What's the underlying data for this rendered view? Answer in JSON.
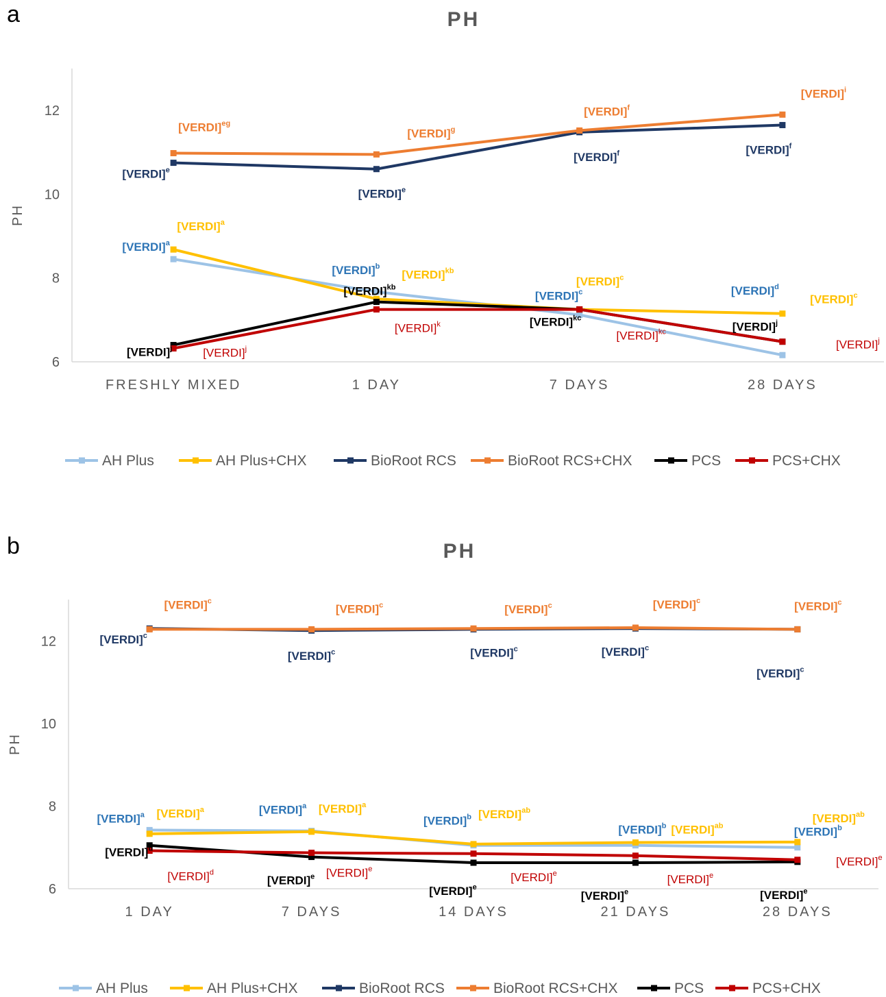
{
  "panel_a": {
    "letter": "a"
  },
  "panel_b": {
    "letter": "b"
  },
  "colors": {
    "AH Plus": "#9DC3E6",
    "AH Plus+CHX": "#FFC000",
    "BioRoot RCS": "#1F3864",
    "BioRoot RCS+CHX": "#ED7D31",
    "PCS": "#000000",
    "PCS+CHX": "#C00000"
  },
  "label_colors": {
    "AH Plus": "#2E75B6",
    "AH Plus+CHX": "#FFC000",
    "BioRoot RCS": "#1F3864",
    "BioRoot RCS+CHX": "#ED7D31",
    "PCS": "#000000",
    "PCS+CHX": "#C00000"
  },
  "chart_data": [
    {
      "type": "line",
      "title": "PH",
      "ylabel": "PH",
      "xlabel": "",
      "ylim": [
        6,
        13
      ],
      "yticks": [
        6,
        8,
        10,
        12
      ],
      "grid": false,
      "legend": "bottom",
      "categories": [
        "FRESHLY MIXED",
        "1 DAY",
        "7 DAYS",
        "28 DAYS"
      ],
      "series": [
        {
          "name": "AH Plus",
          "values": [
            8.45,
            7.67,
            7.12,
            6.16
          ],
          "labels": [
            {
              "text": "[VERDI]",
              "sup": "a"
            },
            {
              "text": "[VERDI]",
              "sup": "b"
            },
            {
              "text": "[VERDI]",
              "sup": "c"
            },
            {
              "text": "[VERDI]",
              "sup": "d"
            }
          ]
        },
        {
          "name": "AH Plus+CHX",
          "values": [
            8.68,
            7.5,
            7.25,
            7.15
          ],
          "labels": [
            {
              "text": "[VERDI]",
              "sup": "a"
            },
            {
              "text": "[VERDI]",
              "sup": "kb"
            },
            {
              "text": "[VERDI]",
              "sup": "c"
            },
            {
              "text": "[VERDI]",
              "sup": "c"
            }
          ]
        },
        {
          "name": "BioRoot RCS",
          "values": [
            10.75,
            10.6,
            11.48,
            11.65
          ],
          "labels": [
            {
              "text": "[VERDI]",
              "sup": "e"
            },
            {
              "text": "[VERDI]",
              "sup": "e"
            },
            {
              "text": "[VERDI]",
              "sup": "f"
            },
            {
              "text": "[VERDI]",
              "sup": "f"
            }
          ]
        },
        {
          "name": "BioRoot RCS+CHX",
          "values": [
            10.98,
            10.95,
            11.52,
            11.9
          ],
          "labels": [
            {
              "text": "[VERDI]",
              "sup": "eg"
            },
            {
              "text": "[VERDI]",
              "sup": "g"
            },
            {
              "text": "[VERDI]",
              "sup": "f"
            },
            {
              "text": "[VERDI]",
              "sup": "i"
            }
          ]
        },
        {
          "name": "PCS",
          "values": [
            6.4,
            7.43,
            7.25,
            6.48
          ],
          "labels": [
            {
              "text": "[VERDI]",
              "sup": "j"
            },
            {
              "text": "[VERDI]",
              "sup": "kb"
            },
            {
              "text": "[VERDI]",
              "sup": "kc"
            },
            {
              "text": "[VERDI]",
              "sup": "j"
            }
          ]
        },
        {
          "name": "PCS+CHX",
          "values": [
            6.32,
            7.25,
            7.25,
            6.48
          ],
          "labels": [
            {
              "text": "[VERDI]",
              "sup": "j"
            },
            {
              "text": "[VERDI]",
              "sup": "k"
            },
            {
              "text": "[VERDI]",
              "sup": "kc"
            },
            {
              "text": "[VERDI]",
              "sup": "j"
            }
          ]
        }
      ]
    },
    {
      "type": "line",
      "title": "PH",
      "ylabel": "PH",
      "xlabel": "",
      "ylim": [
        6,
        13
      ],
      "yticks": [
        6,
        8,
        10,
        12
      ],
      "grid": false,
      "legend": "bottom",
      "categories": [
        "1 DAY",
        "7 DAYS",
        "14 DAYS",
        "21 DAYS",
        "28 DAYS"
      ],
      "series": [
        {
          "name": "AH Plus",
          "values": [
            7.42,
            7.4,
            7.05,
            7.05,
            7.0
          ],
          "labels": [
            {
              "text": "[VERDI]",
              "sup": "a"
            },
            {
              "text": "[VERDI]",
              "sup": "a"
            },
            {
              "text": "[VERDI]",
              "sup": "b"
            },
            {
              "text": "[VERDI]",
              "sup": "b"
            },
            {
              "text": "[VERDI]",
              "sup": "b"
            }
          ]
        },
        {
          "name": "AH Plus+CHX",
          "values": [
            7.33,
            7.38,
            7.08,
            7.12,
            7.13
          ],
          "labels": [
            {
              "text": "[VERDI]",
              "sup": "a"
            },
            {
              "text": "[VERDI]",
              "sup": "a"
            },
            {
              "text": "[VERDI]",
              "sup": "ab"
            },
            {
              "text": "[VERDI]",
              "sup": "ab"
            },
            {
              "text": "[VERDI]",
              "sup": "ab"
            }
          ]
        },
        {
          "name": "BioRoot RCS",
          "values": [
            12.3,
            12.25,
            12.28,
            12.3,
            12.28
          ],
          "labels": [
            {
              "text": "[VERDI]",
              "sup": "c"
            },
            {
              "text": "[VERDI]",
              "sup": "c"
            },
            {
              "text": "[VERDI]",
              "sup": "c"
            },
            {
              "text": "[VERDI]",
              "sup": "c"
            },
            {
              "text": "[VERDI]",
              "sup": "c"
            }
          ]
        },
        {
          "name": "BioRoot RCS+CHX",
          "values": [
            12.28,
            12.28,
            12.3,
            12.32,
            12.28
          ],
          "labels": [
            {
              "text": "[VERDI]",
              "sup": "c"
            },
            {
              "text": "[VERDI]",
              "sup": "c"
            },
            {
              "text": "[VERDI]",
              "sup": "c"
            },
            {
              "text": "[VERDI]",
              "sup": "c"
            },
            {
              "text": "[VERDI]",
              "sup": "c"
            }
          ]
        },
        {
          "name": "PCS",
          "values": [
            7.05,
            6.77,
            6.63,
            6.63,
            6.65
          ],
          "labels": [
            {
              "text": "[VERDI]",
              "sup": "d"
            },
            {
              "text": "[VERDI]",
              "sup": "e"
            },
            {
              "text": "[VERDI]",
              "sup": "e"
            },
            {
              "text": "[VERDI]",
              "sup": "e"
            },
            {
              "text": "[VERDI]",
              "sup": "e"
            }
          ]
        },
        {
          "name": "PCS+CHX",
          "values": [
            6.92,
            6.87,
            6.85,
            6.8,
            6.7
          ],
          "labels": [
            {
              "text": "[VERDI]",
              "sup": "d"
            },
            {
              "text": "[VERDI]",
              "sup": "e"
            },
            {
              "text": "[VERDI]",
              "sup": "e"
            },
            {
              "text": "[VERDI]",
              "sup": "e"
            },
            {
              "text": "[VERDI]",
              "sup": "e"
            }
          ]
        }
      ]
    }
  ]
}
